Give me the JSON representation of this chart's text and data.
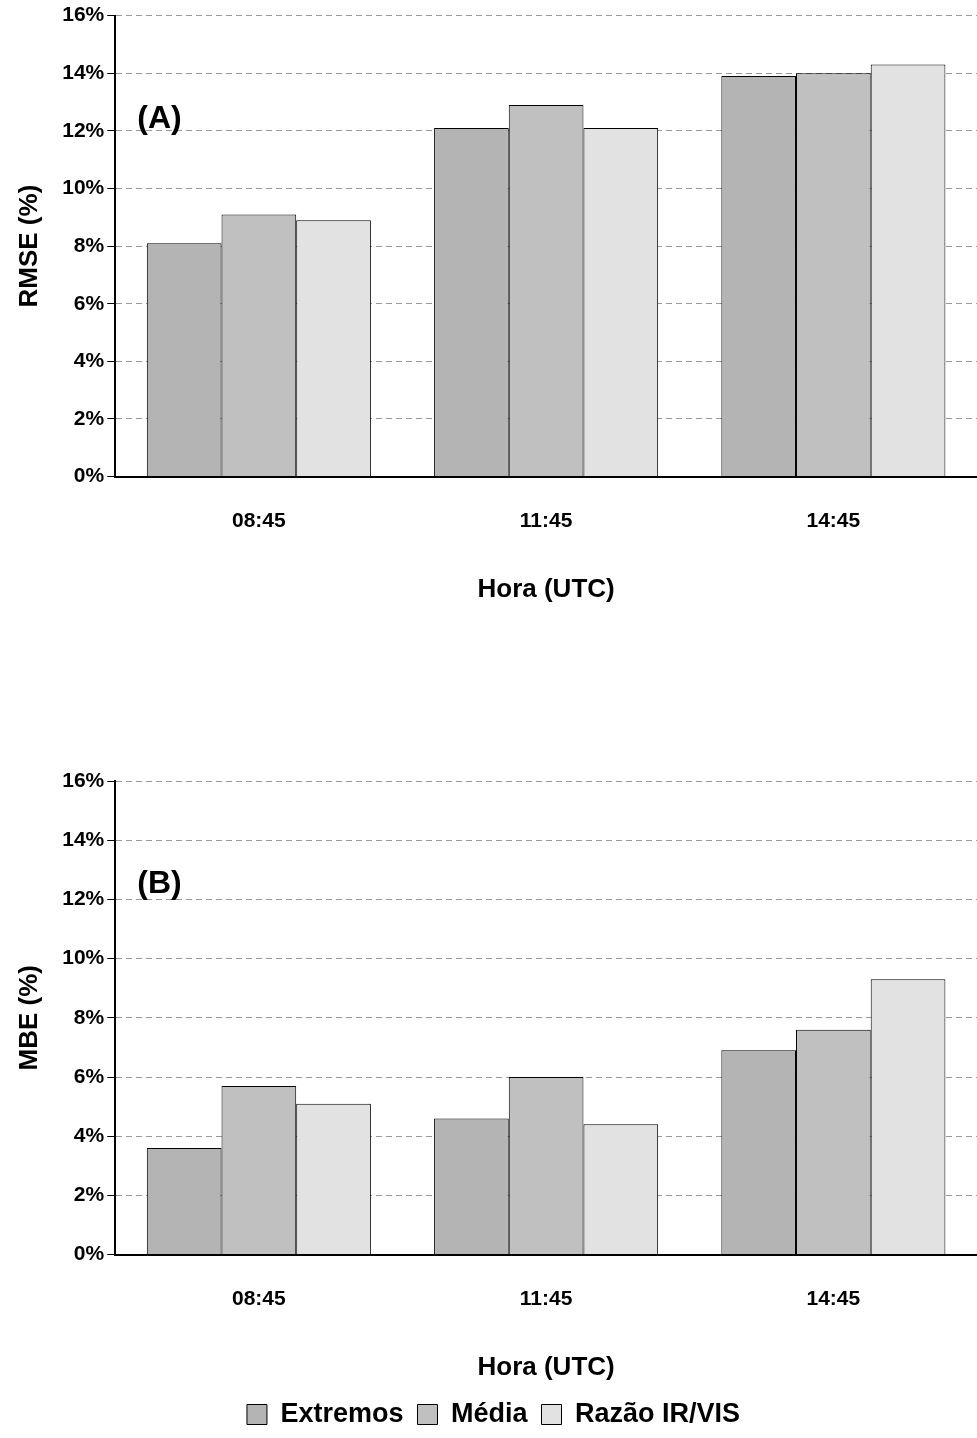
{
  "chart_data": [
    {
      "type": "bar",
      "categories": [
        "08:45",
        "11:45",
        "14:45"
      ],
      "xlabel": "Hora (UTC)",
      "ylabel": "RMSE (%)",
      "annotations": [
        "(A)"
      ],
      "series": [
        {
          "color": "#b4b4b4",
          "values": [
            8.1,
            12.1,
            13.9
          ]
        },
        {
          "color": "#c0c0c0",
          "values": [
            9.1,
            12.9,
            14.0
          ]
        },
        {
          "color": "#e2e2e2",
          "values": [
            8.9,
            12.1,
            14.3
          ]
        }
      ],
      "ylim": [
        0,
        16
      ],
      "yticks": [
        {
          "value": 0,
          "label": "0%"
        },
        {
          "value": 2,
          "label": "2%"
        },
        {
          "value": 4,
          "label": "4%"
        },
        {
          "value": 6,
          "label": "6%"
        },
        {
          "value": 8,
          "label": "8%"
        },
        {
          "value": 10,
          "label": "10%"
        },
        {
          "value": 12,
          "label": "12%"
        },
        {
          "value": 14,
          "label": "14%"
        },
        {
          "value": 16,
          "label": "16%"
        }
      ],
      "grid": "y",
      "legend": false
    },
    {
      "type": "bar",
      "categories": [
        "08:45",
        "11:45",
        "14:45"
      ],
      "xlabel": "Hora (UTC)",
      "ylabel": "MBE (%)",
      "annotations": [
        "(B)"
      ],
      "series": [
        {
          "name": "Extremos",
          "color": "#b4b4b4",
          "values": [
            3.6,
            4.6,
            6.9
          ]
        },
        {
          "name": "Média",
          "color": "#c0c0c0",
          "values": [
            5.7,
            6.0,
            7.6
          ]
        },
        {
          "name": "Razão IR/VIS",
          "color": "#e2e2e2",
          "values": [
            5.1,
            4.4,
            9.3
          ]
        }
      ],
      "ylim": [
        0,
        16
      ],
      "yticks": [
        {
          "value": 0,
          "label": "0%"
        },
        {
          "value": 2,
          "label": "2%"
        },
        {
          "value": 4,
          "label": "4%"
        },
        {
          "value": 6,
          "label": "6%"
        },
        {
          "value": 8,
          "label": "8%"
        },
        {
          "value": 10,
          "label": "10%"
        },
        {
          "value": 12,
          "label": "12%"
        },
        {
          "value": 14,
          "label": "14%"
        },
        {
          "value": 16,
          "label": "16%"
        }
      ],
      "grid": "y",
      "legend": "bottom"
    }
  ]
}
